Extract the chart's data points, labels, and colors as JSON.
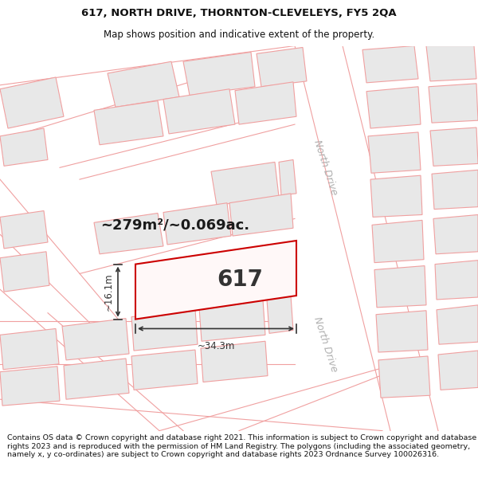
{
  "title_line1": "617, NORTH DRIVE, THORNTON-CLEVELEYS, FY5 2QA",
  "title_line2": "Map shows position and indicative extent of the property.",
  "footer_text": "Contains OS data © Crown copyright and database right 2021. This information is subject to Crown copyright and database rights 2023 and is reproduced with the permission of HM Land Registry. The polygons (including the associated geometry, namely x, y co-ordinates) are subject to Crown copyright and database rights 2023 Ordnance Survey 100026316.",
  "area_text": "~279m²/~0.069ac.",
  "property_label": "617",
  "dim_width": "~34.3m",
  "dim_height": "~16.1m",
  "bg_color": "#ffffff",
  "property_edge": "#cc0000",
  "road_line_color": "#f0a0a0",
  "building_fill": "#e8e8e8",
  "building_edge": "#f0a0a0",
  "north_drive_label": "North Drive",
  "title_fontsize": 9.5,
  "subtitle_fontsize": 8.5,
  "footer_fontsize": 6.8
}
